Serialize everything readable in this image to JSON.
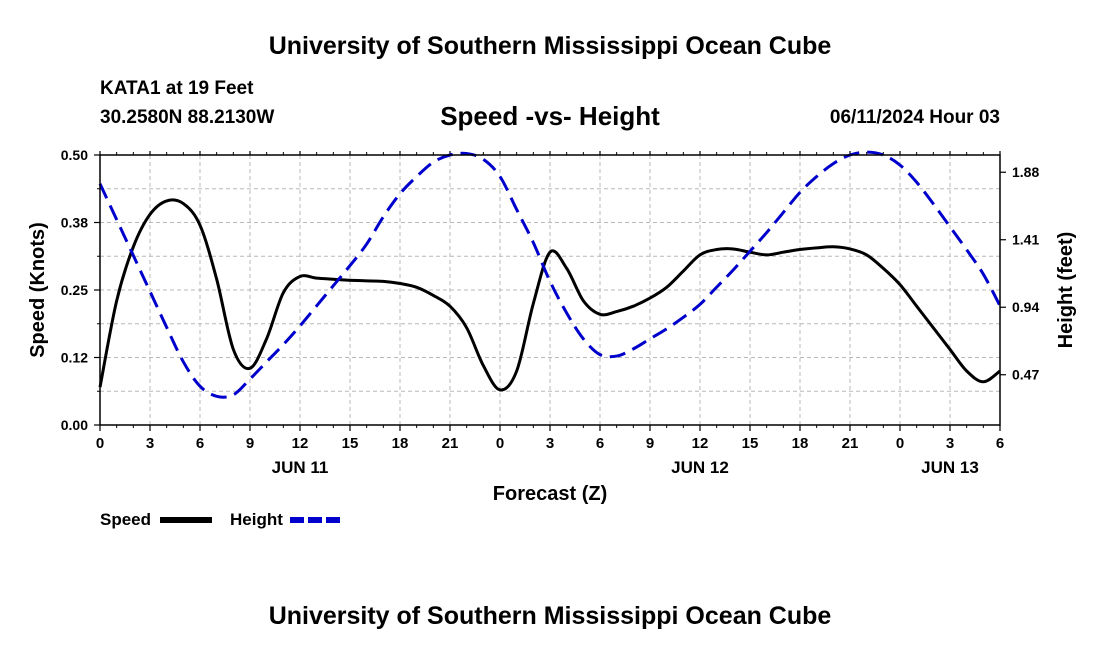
{
  "title": "University of Southern Mississippi Ocean Cube",
  "footer_title": "University of Southern Mississippi Ocean Cube",
  "station": {
    "name": "KATA1 at 19 Feet",
    "coords": "30.2580N  88.2130W"
  },
  "issued": "06/11/2024 Hour 03",
  "chart_data": {
    "type": "line",
    "title": "Speed -vs- Height",
    "xlabel": "Forecast (Z)",
    "ylabel": "Speed (Knots)",
    "y2label": "Height (feet)",
    "x_range": [
      0,
      54
    ],
    "ylim": [
      0,
      0.5
    ],
    "y2lim": [
      0.12,
      2.0
    ],
    "x_tick_labels": [
      "0",
      "3",
      "6",
      "9",
      "12",
      "15",
      "18",
      "21",
      "0",
      "3",
      "6",
      "9",
      "12",
      "15",
      "18",
      "21",
      "0",
      "3",
      "6"
    ],
    "y_tick_labels": [
      "0.00",
      "0.12",
      "0.25",
      "0.38",
      "0.50"
    ],
    "y_tick_values": [
      0,
      0.125,
      0.25,
      0.375,
      0.5
    ],
    "y2_tick_labels": [
      "0.47",
      "0.94",
      "1.41",
      "1.88"
    ],
    "y2_tick_values": [
      0.47,
      0.94,
      1.41,
      1.88
    ],
    "day_labels": [
      {
        "text": "JUN 11",
        "x": 12
      },
      {
        "text": "JUN 12",
        "x": 36
      },
      {
        "text": "JUN 13",
        "x": 51
      }
    ],
    "series": [
      {
        "name": "Speed",
        "axis": "left",
        "color": "#000000",
        "style": "solid",
        "x": [
          0,
          1,
          2,
          3,
          4,
          5,
          6,
          7,
          8,
          9,
          10,
          11,
          12,
          13,
          14,
          15,
          16,
          17,
          18,
          19,
          20,
          21,
          22,
          23,
          24,
          25,
          26,
          27,
          28,
          29,
          30,
          31,
          32,
          33,
          34,
          35,
          36,
          37,
          38,
          39,
          40,
          41,
          42,
          43,
          44,
          45,
          46,
          47,
          48,
          49,
          50,
          51,
          52,
          53,
          54
        ],
        "values": [
          0.07,
          0.23,
          0.33,
          0.39,
          0.415,
          0.41,
          0.37,
          0.27,
          0.14,
          0.105,
          0.16,
          0.245,
          0.275,
          0.272,
          0.27,
          0.268,
          0.267,
          0.266,
          0.262,
          0.255,
          0.24,
          0.22,
          0.18,
          0.11,
          0.065,
          0.1,
          0.225,
          0.32,
          0.29,
          0.23,
          0.205,
          0.21,
          0.22,
          0.235,
          0.255,
          0.285,
          0.315,
          0.325,
          0.326,
          0.32,
          0.315,
          0.32,
          0.325,
          0.328,
          0.33,
          0.326,
          0.315,
          0.29,
          0.26,
          0.22,
          0.18,
          0.14,
          0.1,
          0.08,
          0.1
        ]
      },
      {
        "name": "Height",
        "axis": "right",
        "color": "#0000cc",
        "style": "dashed",
        "x": [
          0,
          1,
          2,
          3,
          4,
          5,
          6,
          7,
          8,
          9,
          10,
          11,
          12,
          13,
          14,
          15,
          16,
          17,
          18,
          19,
          20,
          21,
          22,
          23,
          24,
          25,
          26,
          27,
          28,
          29,
          30,
          31,
          32,
          33,
          34,
          35,
          36,
          37,
          38,
          39,
          40,
          41,
          42,
          43,
          44,
          45,
          46,
          47,
          48,
          49,
          50,
          51,
          52,
          53,
          54
        ],
        "values": [
          1.8,
          1.55,
          1.3,
          1.05,
          0.8,
          0.56,
          0.39,
          0.32,
          0.33,
          0.44,
          0.56,
          0.68,
          0.81,
          0.95,
          1.09,
          1.23,
          1.38,
          1.57,
          1.73,
          1.85,
          1.95,
          2.0,
          2.01,
          1.97,
          1.85,
          1.62,
          1.39,
          1.12,
          0.9,
          0.72,
          0.61,
          0.6,
          0.65,
          0.72,
          0.79,
          0.87,
          0.96,
          1.08,
          1.2,
          1.33,
          1.46,
          1.6,
          1.74,
          1.85,
          1.94,
          2.0,
          2.02,
          2.0,
          1.93,
          1.81,
          1.66,
          1.5,
          1.34,
          1.17,
          0.95
        ]
      }
    ],
    "legend": [
      {
        "label": "Speed",
        "color": "#000000",
        "style": "solid"
      },
      {
        "label": "Height",
        "color": "#0000cc",
        "style": "dashed"
      }
    ]
  }
}
